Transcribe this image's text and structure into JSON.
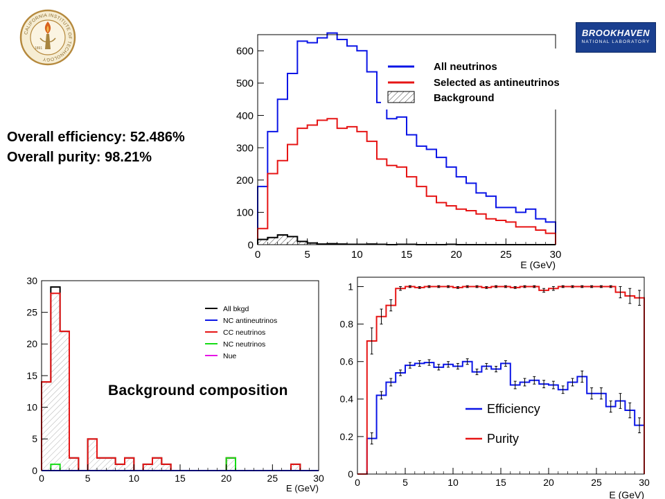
{
  "caltech_logo": {
    "ring_text": "CALIFORNIA INSTITUTE OF TECHNOLOGY",
    "year": "1891"
  },
  "bnl_logo": {
    "line1": "BROOKHAVEN",
    "line2": "NATIONAL LABORATORY"
  },
  "stats": {
    "efficiency": "Overall efficiency: 52.486%",
    "purity": "Overall purity: 98.21%"
  },
  "background_title": "Background composition",
  "colors": {
    "blue": "#0a14e6",
    "red": "#e61414",
    "black": "#000000",
    "green": "#14dc14",
    "magenta": "#e614e6"
  },
  "chart_data": [
    {
      "type": "step-histogram",
      "xlabel": "E (GeV)",
      "xlim": [
        0,
        30
      ],
      "ylim": [
        0,
        650
      ],
      "x_ticks": [
        "0",
        "5",
        "10",
        "15",
        "20",
        "25",
        "30"
      ],
      "y_ticks": [
        "0",
        "100",
        "200",
        "300",
        "400",
        "500",
        "600"
      ],
      "bin_edges": [
        0,
        1,
        2,
        3,
        4,
        5,
        6,
        7,
        8,
        9,
        10,
        11,
        12,
        13,
        14,
        15,
        16,
        17,
        18,
        19,
        20,
        21,
        22,
        23,
        24,
        25,
        26,
        27,
        28,
        29,
        30
      ],
      "legend": [
        "All neutrinos",
        "Selected as antineutrinos",
        "Background"
      ],
      "series": [
        {
          "name": "All neutrinos",
          "color": "blue",
          "values": [
            180,
            350,
            450,
            530,
            630,
            625,
            640,
            655,
            635,
            615,
            600,
            535,
            440,
            390,
            395,
            340,
            305,
            295,
            270,
            240,
            210,
            190,
            160,
            150,
            115,
            115,
            100,
            110,
            80,
            70
          ]
        },
        {
          "name": "Selected as antineutrinos",
          "color": "red",
          "values": [
            50,
            220,
            260,
            310,
            360,
            370,
            385,
            390,
            360,
            365,
            350,
            320,
            265,
            245,
            240,
            210,
            180,
            150,
            130,
            120,
            110,
            105,
            95,
            80,
            75,
            70,
            55,
            55,
            45,
            35
          ]
        },
        {
          "name": "Background",
          "color": "black",
          "hatched": true,
          "values": [
            16,
            22,
            30,
            25,
            10,
            5,
            2,
            3,
            2,
            1,
            1,
            2,
            1,
            0,
            1,
            1,
            0,
            0,
            0,
            1,
            0,
            0,
            0,
            0,
            0,
            0,
            0,
            0,
            0,
            0
          ]
        }
      ]
    },
    {
      "type": "step-histogram",
      "xlabel": "E (GeV)",
      "xlim": [
        0,
        30
      ],
      "ylim": [
        0,
        30
      ],
      "x_ticks": [
        "0",
        "5",
        "10",
        "15",
        "20",
        "25",
        "30"
      ],
      "y_ticks": [
        "0",
        "5",
        "10",
        "15",
        "20",
        "25",
        "30"
      ],
      "bin_edges": [
        0,
        1,
        2,
        3,
        4,
        5,
        6,
        7,
        8,
        9,
        10,
        11,
        12,
        13,
        14,
        15,
        16,
        17,
        18,
        19,
        20,
        21,
        22,
        23,
        24,
        25,
        26,
        27,
        28,
        29,
        30
      ],
      "legend": [
        "All bkgd",
        "NC antineutrinos",
        "CC neutrinos",
        "NC neutrinos",
        "Nue"
      ],
      "series": [
        {
          "name": "All bkgd",
          "color": "black",
          "values": [
            14,
            29,
            22,
            2,
            0,
            5,
            2,
            2,
            1,
            2,
            0,
            1,
            2,
            1,
            0,
            0,
            0,
            0,
            0,
            0,
            2,
            0,
            0,
            0,
            0,
            0,
            0,
            1,
            0,
            0
          ]
        },
        {
          "name": "NC antineutrinos",
          "color": "blue",
          "values": [
            0,
            0,
            0,
            0,
            0,
            0,
            0,
            0,
            0,
            0,
            0,
            0,
            0,
            0,
            0,
            0,
            0,
            0,
            0,
            0,
            0,
            0,
            0,
            0,
            0,
            0,
            0,
            0,
            0,
            0
          ]
        },
        {
          "name": "CC neutrinos",
          "color": "red",
          "hatched": true,
          "values": [
            14,
            28,
            22,
            2,
            0,
            5,
            2,
            2,
            1,
            2,
            0,
            1,
            2,
            1,
            0,
            0,
            0,
            0,
            0,
            0,
            2,
            0,
            0,
            0,
            0,
            0,
            0,
            1,
            0,
            0
          ]
        },
        {
          "name": "NC neutrinos",
          "color": "green",
          "values": [
            0,
            1,
            0,
            0,
            0,
            0,
            0,
            0,
            0,
            0,
            0,
            0,
            0,
            0,
            0,
            0,
            0,
            0,
            0,
            0,
            2,
            0,
            0,
            0,
            0,
            0,
            0,
            0,
            0,
            0
          ]
        },
        {
          "name": "Nue",
          "color": "magenta",
          "values": [
            0,
            0,
            0,
            0,
            0,
            0,
            0,
            0,
            0,
            0,
            0,
            0,
            0,
            0,
            0,
            0,
            0,
            0,
            0,
            0,
            0,
            0,
            0,
            0,
            0,
            0,
            0,
            0,
            0,
            0
          ]
        }
      ]
    },
    {
      "type": "step-histogram-errorbars",
      "xlabel": "E (GeV)",
      "xlim": [
        0,
        30
      ],
      "ylim": [
        0,
        1.05
      ],
      "x_ticks": [
        "0",
        "5",
        "10",
        "15",
        "20",
        "25",
        "30"
      ],
      "y_ticks": [
        "0",
        "0.2",
        "0.4",
        "0.6",
        "0.8",
        "1"
      ],
      "bin_edges": [
        0,
        1,
        2,
        3,
        4,
        5,
        6,
        7,
        8,
        9,
        10,
        11,
        12,
        13,
        14,
        15,
        16,
        17,
        18,
        19,
        20,
        21,
        22,
        23,
        24,
        25,
        26,
        27,
        28,
        29,
        30
      ],
      "legend": [
        "Efficiency",
        "Purity"
      ],
      "series": [
        {
          "name": "Efficiency",
          "color": "blue",
          "values": [
            0,
            0.19,
            0.42,
            0.49,
            0.54,
            0.58,
            0.59,
            0.595,
            0.57,
            0.585,
            0.575,
            0.6,
            0.545,
            0.575,
            0.56,
            0.59,
            0.475,
            0.49,
            0.5,
            0.48,
            0.475,
            0.45,
            0.49,
            0.52,
            0.43,
            0.43,
            0.36,
            0.39,
            0.34,
            0.26
          ],
          "errors": [
            0,
            0.03,
            0.02,
            0.02,
            0.015,
            0.015,
            0.015,
            0.015,
            0.015,
            0.015,
            0.015,
            0.015,
            0.015,
            0.015,
            0.015,
            0.015,
            0.02,
            0.02,
            0.02,
            0.02,
            0.02,
            0.02,
            0.02,
            0.03,
            0.03,
            0.03,
            0.03,
            0.04,
            0.04,
            0.04
          ]
        },
        {
          "name": "Purity",
          "color": "red",
          "values": [
            0,
            0.71,
            0.84,
            0.9,
            0.99,
            1,
            0.995,
            1,
            1,
            1,
            0.995,
            1,
            1,
            0.995,
            1,
            1,
            0.995,
            1,
            1,
            0.98,
            0.99,
            1,
            1,
            1,
            1,
            1,
            1,
            0.97,
            0.95,
            0.94
          ],
          "errors": [
            0,
            0.07,
            0.04,
            0.03,
            0.01,
            0.005,
            0.005,
            0.005,
            0.005,
            0.005,
            0.005,
            0.005,
            0.005,
            0.005,
            0.005,
            0.005,
            0.005,
            0.005,
            0.005,
            0.01,
            0.01,
            0.005,
            0.005,
            0.005,
            0.005,
            0.005,
            0.005,
            0.03,
            0.04,
            0.04
          ]
        }
      ]
    }
  ]
}
